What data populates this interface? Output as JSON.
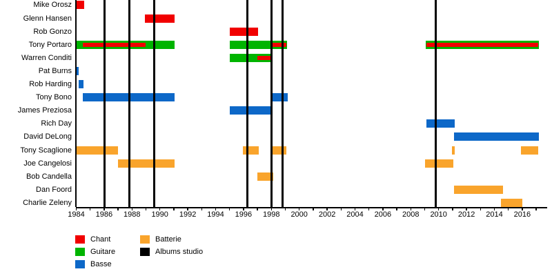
{
  "chart_data": {
    "type": "bar",
    "subtype": "band-members-gantt-timeline",
    "title": "",
    "xlabel": "",
    "ylabel": "",
    "x_axis": {
      "start": 1984,
      "end": 2017.2,
      "tick_interval_years": 1,
      "label_interval_years": 2,
      "tick_labels": [
        "1984",
        "1986",
        "1988",
        "1990",
        "1992",
        "1994",
        "1996",
        "1998",
        "2000",
        "2002",
        "2004",
        "2006",
        "2008",
        "2010",
        "2012",
        "2014",
        "2016"
      ]
    },
    "legend": [
      {
        "label": "Chant",
        "role": "chant",
        "color": "#f10000"
      },
      {
        "label": "Guitare",
        "role": "guitare",
        "color": "#00b400"
      },
      {
        "label": "Basse",
        "role": "basse",
        "color": "#0d68c8"
      },
      {
        "label": "Batterie",
        "role": "batterie",
        "color": "#f9a42c"
      },
      {
        "label": "Albums studio",
        "role": "albums",
        "color": "#000000"
      }
    ],
    "album_release_years": [
      1986.05,
      1987.8,
      1989.6,
      1996.27,
      1998.0,
      1998.8,
      2009.78
    ],
    "members": [
      {
        "name": "Mike Orosz",
        "stints": [
          {
            "role": "chant",
            "start": 1984.0,
            "end": 1984.55
          }
        ]
      },
      {
        "name": "Glenn Hansen",
        "stints": [
          {
            "role": "chant",
            "start": 1988.95,
            "end": 1991.05
          }
        ]
      },
      {
        "name": "Rob Gonzo",
        "stints": [
          {
            "role": "chant",
            "start": 1995.0,
            "end": 1997.05
          }
        ]
      },
      {
        "name": "Tony Portaro",
        "stints": [
          {
            "role": "guitare",
            "start": 1984.0,
            "end": 1991.05
          },
          {
            "role": "chant",
            "start": 1984.45,
            "end": 1989.0,
            "inset": true
          },
          {
            "role": "guitare",
            "start": 1995.0,
            "end": 1999.1
          },
          {
            "role": "chant",
            "start": 1998.0,
            "end": 1999.05,
            "inset": true
          },
          {
            "role": "guitare",
            "start": 2009.05,
            "end": 2017.2
          },
          {
            "role": "chant",
            "start": 2009.1,
            "end": 2017.15,
            "inset": true
          }
        ]
      },
      {
        "name": "Warren Conditi",
        "stints": [
          {
            "role": "guitare",
            "start": 1995.0,
            "end": 1998.1
          },
          {
            "role": "chant",
            "start": 1997.0,
            "end": 1998.0,
            "inset": true
          }
        ]
      },
      {
        "name": "Pat Burns",
        "stints": [
          {
            "role": "basse",
            "start": 1984.0,
            "end": 1984.15
          }
        ]
      },
      {
        "name": "Rob Harding",
        "stints": [
          {
            "role": "basse",
            "start": 1984.15,
            "end": 1984.5
          }
        ]
      },
      {
        "name": "Tony Bono",
        "stints": [
          {
            "role": "basse",
            "start": 1984.45,
            "end": 1991.05
          },
          {
            "role": "basse",
            "start": 1998.05,
            "end": 1999.15
          }
        ]
      },
      {
        "name": "James Preziosa",
        "stints": [
          {
            "role": "basse",
            "start": 1995.0,
            "end": 1998.05
          }
        ]
      },
      {
        "name": "Rich Day",
        "stints": [
          {
            "role": "basse",
            "start": 2009.1,
            "end": 2011.15
          }
        ]
      },
      {
        "name": "David DeLong",
        "stints": [
          {
            "role": "basse",
            "start": 2011.1,
            "end": 2017.2
          }
        ]
      },
      {
        "name": "Tony Scaglione",
        "stints": [
          {
            "role": "batterie",
            "start": 1984.0,
            "end": 1987.0
          },
          {
            "role": "batterie",
            "start": 1995.95,
            "end": 1997.1
          },
          {
            "role": "batterie",
            "start": 1998.1,
            "end": 1999.05
          },
          {
            "role": "batterie",
            "start": 2010.96,
            "end": 2011.15
          },
          {
            "role": "batterie",
            "start": 2015.9,
            "end": 2017.15
          }
        ]
      },
      {
        "name": "Joe Cangelosi",
        "stints": [
          {
            "role": "batterie",
            "start": 1987.0,
            "end": 1991.05
          },
          {
            "role": "batterie",
            "start": 2009.0,
            "end": 2011.05
          }
        ]
      },
      {
        "name": "Bob Candella",
        "stints": [
          {
            "role": "batterie",
            "start": 1997.0,
            "end": 1998.15
          }
        ]
      },
      {
        "name": "Dan Foord",
        "stints": [
          {
            "role": "batterie",
            "start": 2011.1,
            "end": 2014.6
          }
        ]
      },
      {
        "name": "Charlie Zeleny",
        "stints": [
          {
            "role": "batterie",
            "start": 2014.45,
            "end": 2016.0
          }
        ]
      }
    ]
  }
}
